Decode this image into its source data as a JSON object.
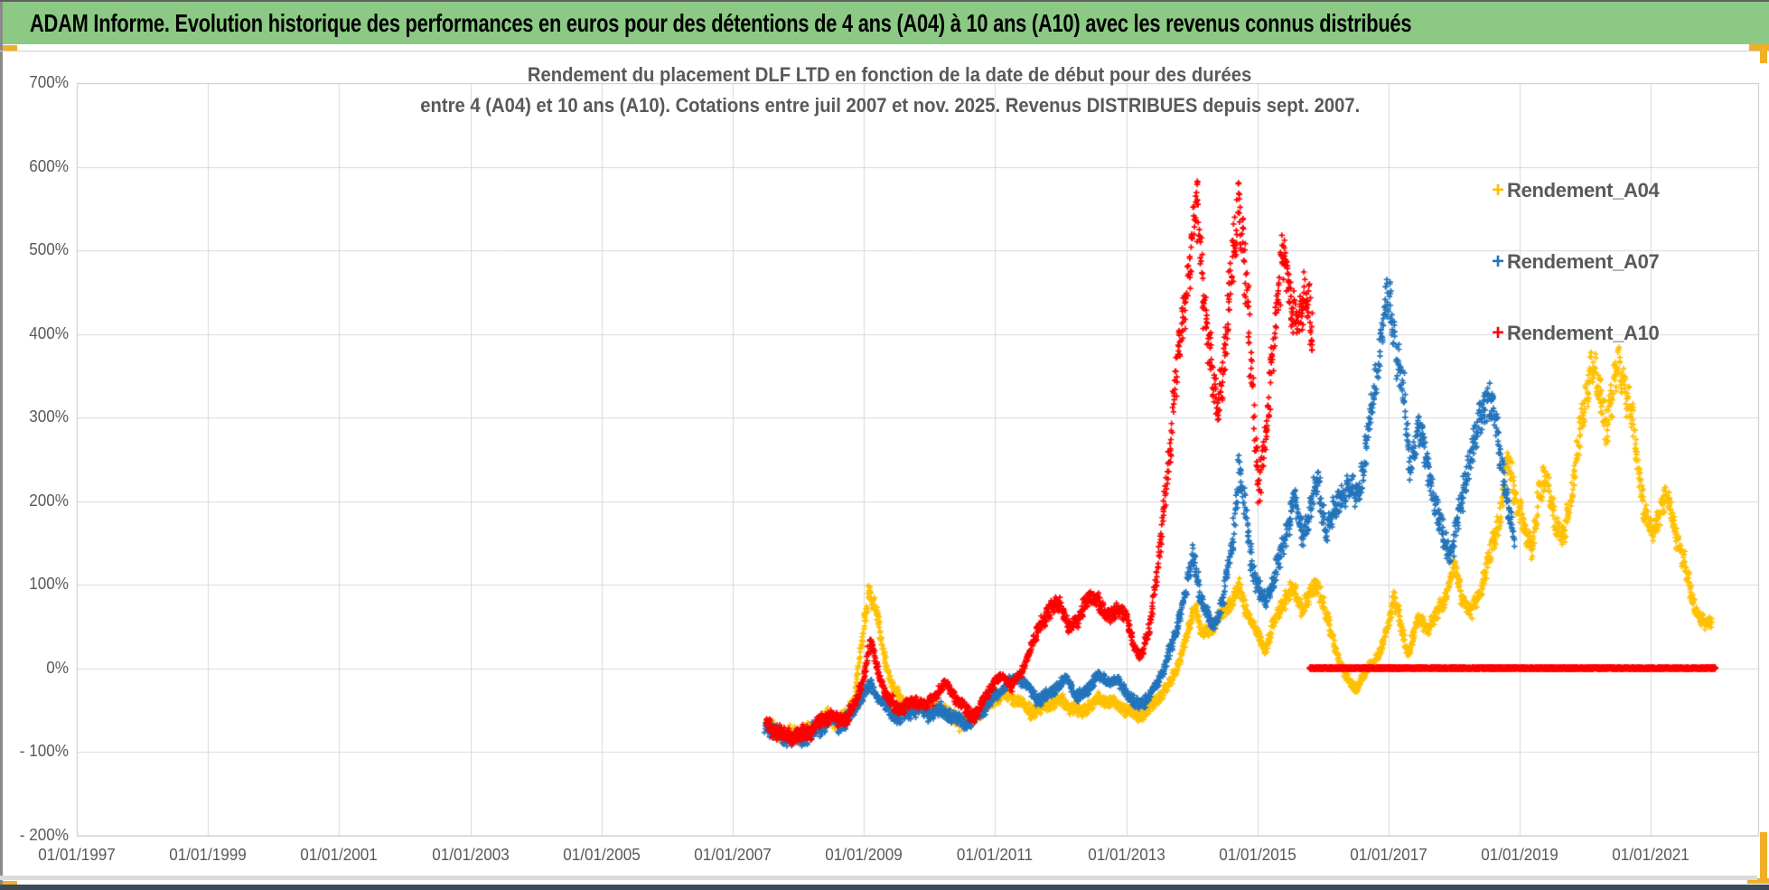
{
  "window": {
    "banner_title": "ADAM Informe. Evolution historique des performances en euros pour des détentions de 4 ans (A04) à 10 ans (A10) avec les revenus connus distribués",
    "banner_color": "#8CC985",
    "accent_color": "#EFAF26",
    "footer_bar_color": "#3D4A5A"
  },
  "chart_data": {
    "type": "scatter",
    "marker": "plus",
    "title_lines": [
      "Rendement du placement DLF LTD en fonction de la date de début pour des durées",
      "entre 4 (A04) et 10 ans (A10). Cotations entre juil 2007 et nov. 2025. Revenus DISTRIBUES depuis sept. 2007."
    ],
    "grid": true,
    "legend_position": "inside-top-right",
    "x_axis": {
      "tick_labels": [
        "01/01/1997",
        "01/01/1999",
        "01/01/2001",
        "01/01/2003",
        "01/01/2005",
        "01/01/2007",
        "01/01/2009",
        "01/01/2011",
        "01/01/2013",
        "01/01/2015",
        "01/01/2017",
        "01/01/2019",
        "01/01/2021"
      ],
      "tick_years": [
        1997,
        1999,
        2001,
        2003,
        2005,
        2007,
        2009,
        2011,
        2013,
        2015,
        2017,
        2019,
        2021
      ],
      "range_years": [
        1997,
        2023.6
      ]
    },
    "y_axis": {
      "tick_labels": [
        "700%",
        "600%",
        "500%",
        "400%",
        "300%",
        "200%",
        "100%",
        "0%",
        "- 100%",
        "- 200%"
      ],
      "tick_values": [
        700,
        600,
        500,
        400,
        300,
        200,
        100,
        0,
        -100,
        -200
      ],
      "range_pct": [
        -200,
        700
      ]
    },
    "series": [
      {
        "name": "Rendement_A04",
        "color": "#FFC000",
        "seed": 11,
        "points": [
          [
            2007.5,
            -68
          ],
          [
            2007.62,
            -72
          ],
          [
            2007.75,
            -78
          ],
          [
            2007.9,
            -80
          ],
          [
            2008.05,
            -78
          ],
          [
            2008.2,
            -72
          ],
          [
            2008.3,
            -68
          ],
          [
            2008.45,
            -55
          ],
          [
            2008.6,
            -65
          ],
          [
            2008.75,
            -55
          ],
          [
            2008.85,
            -35
          ],
          [
            2008.95,
            20
          ],
          [
            2009.08,
            95
          ],
          [
            2009.2,
            65
          ],
          [
            2009.32,
            10
          ],
          [
            2009.45,
            -25
          ],
          [
            2009.6,
            -42
          ],
          [
            2009.75,
            -50
          ],
          [
            2009.9,
            -45
          ],
          [
            2010.05,
            -52
          ],
          [
            2010.2,
            -48
          ],
          [
            2010.35,
            -60
          ],
          [
            2010.5,
            -65
          ],
          [
            2010.65,
            -60
          ],
          [
            2010.8,
            -50
          ],
          [
            2010.95,
            -42
          ],
          [
            2011.1,
            -30
          ],
          [
            2011.25,
            -35
          ],
          [
            2011.4,
            -42
          ],
          [
            2011.55,
            -52
          ],
          [
            2011.7,
            -48
          ],
          [
            2011.85,
            -42
          ],
          [
            2012.0,
            -38
          ],
          [
            2012.15,
            -48
          ],
          [
            2012.3,
            -52
          ],
          [
            2012.45,
            -45
          ],
          [
            2012.6,
            -35
          ],
          [
            2012.75,
            -42
          ],
          [
            2012.9,
            -45
          ],
          [
            2013.05,
            -52
          ],
          [
            2013.2,
            -58
          ],
          [
            2013.35,
            -48
          ],
          [
            2013.5,
            -35
          ],
          [
            2013.65,
            -20
          ],
          [
            2013.8,
            5
          ],
          [
            2013.95,
            45
          ],
          [
            2014.05,
            78
          ],
          [
            2014.15,
            40
          ],
          [
            2014.3,
            48
          ],
          [
            2014.45,
            62
          ],
          [
            2014.6,
            80
          ],
          [
            2014.72,
            95
          ],
          [
            2014.85,
            65
          ],
          [
            2015.0,
            42
          ],
          [
            2015.12,
            22
          ],
          [
            2015.25,
            55
          ],
          [
            2015.4,
            80
          ],
          [
            2015.55,
            95
          ],
          [
            2015.68,
            72
          ],
          [
            2015.8,
            88
          ],
          [
            2015.92,
            100
          ],
          [
            2016.05,
            62
          ],
          [
            2016.2,
            20
          ],
          [
            2016.35,
            -12
          ],
          [
            2016.5,
            -25
          ],
          [
            2016.62,
            -8
          ],
          [
            2016.75,
            8
          ],
          [
            2016.88,
            18
          ],
          [
            2017.0,
            55
          ],
          [
            2017.08,
            88
          ],
          [
            2017.2,
            45
          ],
          [
            2017.3,
            18
          ],
          [
            2017.45,
            58
          ],
          [
            2017.6,
            48
          ],
          [
            2017.75,
            65
          ],
          [
            2017.9,
            95
          ],
          [
            2018.0,
            125
          ],
          [
            2018.12,
            85
          ],
          [
            2018.25,
            65
          ],
          [
            2018.4,
            95
          ],
          [
            2018.55,
            135
          ],
          [
            2018.7,
            185
          ],
          [
            2018.82,
            245
          ],
          [
            2018.95,
            205
          ],
          [
            2019.05,
            170
          ],
          [
            2019.18,
            142
          ],
          [
            2019.3,
            210
          ],
          [
            2019.42,
            228
          ],
          [
            2019.55,
            170
          ],
          [
            2019.65,
            150
          ],
          [
            2019.78,
            205
          ],
          [
            2019.9,
            265
          ],
          [
            2020.0,
            330
          ],
          [
            2020.1,
            365
          ],
          [
            2020.22,
            330
          ],
          [
            2020.32,
            292
          ],
          [
            2020.42,
            330
          ],
          [
            2020.52,
            365
          ],
          [
            2020.62,
            330
          ],
          [
            2020.72,
            288
          ],
          [
            2020.82,
            235
          ],
          [
            2020.92,
            185
          ],
          [
            2021.02,
            158
          ],
          [
            2021.12,
            185
          ],
          [
            2021.22,
            205
          ],
          [
            2021.32,
            182
          ],
          [
            2021.42,
            152
          ],
          [
            2021.52,
            120
          ],
          [
            2021.62,
            88
          ],
          [
            2021.72,
            65
          ],
          [
            2021.82,
            52
          ],
          [
            2021.92,
            58
          ]
        ]
      },
      {
        "name": "Rendement_A07",
        "color": "#2374BC",
        "seed": 23,
        "points": [
          [
            2007.5,
            -70
          ],
          [
            2007.65,
            -76
          ],
          [
            2007.8,
            -82
          ],
          [
            2007.95,
            -86
          ],
          [
            2008.1,
            -82
          ],
          [
            2008.25,
            -75
          ],
          [
            2008.4,
            -68
          ],
          [
            2008.5,
            -60
          ],
          [
            2008.62,
            -68
          ],
          [
            2008.75,
            -62
          ],
          [
            2008.88,
            -45
          ],
          [
            2009.0,
            -30
          ],
          [
            2009.1,
            -20
          ],
          [
            2009.25,
            -38
          ],
          [
            2009.4,
            -52
          ],
          [
            2009.55,
            -60
          ],
          [
            2009.7,
            -52
          ],
          [
            2009.85,
            -48
          ],
          [
            2010.0,
            -55
          ],
          [
            2010.15,
            -50
          ],
          [
            2010.3,
            -55
          ],
          [
            2010.45,
            -62
          ],
          [
            2010.6,
            -65
          ],
          [
            2010.75,
            -55
          ],
          [
            2010.9,
            -42
          ],
          [
            2011.05,
            -30
          ],
          [
            2011.2,
            -18
          ],
          [
            2011.35,
            -10
          ],
          [
            2011.5,
            -22
          ],
          [
            2011.65,
            -38
          ],
          [
            2011.8,
            -32
          ],
          [
            2011.95,
            -22
          ],
          [
            2012.1,
            -12
          ],
          [
            2012.25,
            -35
          ],
          [
            2012.4,
            -28
          ],
          [
            2012.55,
            -8
          ],
          [
            2012.7,
            -15
          ],
          [
            2012.85,
            -15
          ],
          [
            2013.0,
            -28
          ],
          [
            2013.15,
            -45
          ],
          [
            2013.3,
            -38
          ],
          [
            2013.45,
            -22
          ],
          [
            2013.6,
            5
          ],
          [
            2013.75,
            40
          ],
          [
            2013.9,
            90
          ],
          [
            2014.02,
            135
          ],
          [
            2014.15,
            80
          ],
          [
            2014.3,
            50
          ],
          [
            2014.45,
            72
          ],
          [
            2014.6,
            140
          ],
          [
            2014.72,
            240
          ],
          [
            2014.82,
            180
          ],
          [
            2014.95,
            110
          ],
          [
            2015.1,
            78
          ],
          [
            2015.25,
            105
          ],
          [
            2015.4,
            148
          ],
          [
            2015.55,
            205
          ],
          [
            2015.68,
            158
          ],
          [
            2015.8,
            185
          ],
          [
            2015.92,
            225
          ],
          [
            2016.05,
            162
          ],
          [
            2016.2,
            195
          ],
          [
            2016.35,
            215
          ],
          [
            2016.5,
            205
          ],
          [
            2016.62,
            240
          ],
          [
            2016.75,
            310
          ],
          [
            2016.88,
            390
          ],
          [
            2016.98,
            445
          ],
          [
            2017.1,
            395
          ],
          [
            2017.22,
            330
          ],
          [
            2017.32,
            240
          ],
          [
            2017.45,
            290
          ],
          [
            2017.58,
            250
          ],
          [
            2017.7,
            200
          ],
          [
            2017.82,
            160
          ],
          [
            2017.95,
            135
          ],
          [
            2018.08,
            185
          ],
          [
            2018.2,
            240
          ],
          [
            2018.35,
            285
          ],
          [
            2018.5,
            330
          ],
          [
            2018.6,
            300
          ],
          [
            2018.72,
            250
          ],
          [
            2018.82,
            195
          ],
          [
            2018.92,
            150
          ]
        ]
      },
      {
        "name": "Rendement_A10",
        "color": "#FE0000",
        "seed": 37,
        "points": [
          [
            2007.5,
            -66
          ],
          [
            2007.65,
            -74
          ],
          [
            2007.8,
            -80
          ],
          [
            2007.95,
            -82
          ],
          [
            2008.1,
            -78
          ],
          [
            2008.25,
            -70
          ],
          [
            2008.4,
            -62
          ],
          [
            2008.5,
            -55
          ],
          [
            2008.62,
            -65
          ],
          [
            2008.75,
            -58
          ],
          [
            2008.88,
            -40
          ],
          [
            2009.0,
            -10
          ],
          [
            2009.1,
            35
          ],
          [
            2009.22,
            -5
          ],
          [
            2009.35,
            -35
          ],
          [
            2009.5,
            -48
          ],
          [
            2009.65,
            -45
          ],
          [
            2009.8,
            -40
          ],
          [
            2009.95,
            -45
          ],
          [
            2010.1,
            -32
          ],
          [
            2010.25,
            -18
          ],
          [
            2010.4,
            -35
          ],
          [
            2010.55,
            -50
          ],
          [
            2010.7,
            -58
          ],
          [
            2010.85,
            -35
          ],
          [
            2011.0,
            -15
          ],
          [
            2011.12,
            -8
          ],
          [
            2011.25,
            -22
          ],
          [
            2011.4,
            -5
          ],
          [
            2011.55,
            25
          ],
          [
            2011.7,
            55
          ],
          [
            2011.85,
            70
          ],
          [
            2012.0,
            80
          ],
          [
            2012.12,
            45
          ],
          [
            2012.25,
            58
          ],
          [
            2012.4,
            82
          ],
          [
            2012.55,
            88
          ],
          [
            2012.7,
            58
          ],
          [
            2012.85,
            72
          ],
          [
            2013.0,
            62
          ],
          [
            2013.12,
            25
          ],
          [
            2013.22,
            12
          ],
          [
            2013.35,
            48
          ],
          [
            2013.5,
            130
          ],
          [
            2013.62,
            230
          ],
          [
            2013.75,
            340
          ],
          [
            2013.88,
            430
          ],
          [
            2014.0,
            510
          ],
          [
            2014.07,
            562
          ],
          [
            2014.15,
            470
          ],
          [
            2014.25,
            395
          ],
          [
            2014.38,
            300
          ],
          [
            2014.5,
            380
          ],
          [
            2014.62,
            480
          ],
          [
            2014.72,
            565
          ],
          [
            2014.82,
            470
          ],
          [
            2014.92,
            330
          ],
          [
            2015.02,
            215
          ],
          [
            2015.15,
            290
          ],
          [
            2015.28,
            420
          ],
          [
            2015.38,
            492
          ],
          [
            2015.5,
            445
          ],
          [
            2015.62,
            415
          ],
          [
            2015.75,
            448
          ],
          [
            2015.85,
            405
          ]
        ],
        "zero_segment": {
          "from": 2015.8,
          "to": 2021.98,
          "value": 0
        }
      }
    ],
    "colors": {
      "grid": "#D9D9D9",
      "plot_border": "#C6C6C6",
      "axis_text": "#595959",
      "title_text": "#595959"
    }
  }
}
